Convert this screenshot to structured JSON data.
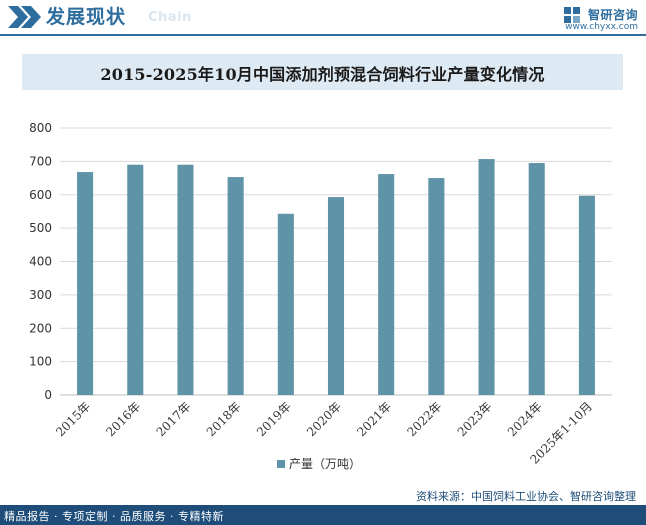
{
  "header": {
    "title": "发展现状",
    "subtitle": "Chain",
    "brand_name": "智研咨询",
    "brand_url": "www.chyxx.com"
  },
  "colors": {
    "accent": "#2e6e9e",
    "bar": "#5f93a8",
    "footer": "#1e4d79",
    "title_bg": "#dde9f3"
  },
  "chart_data": {
    "type": "bar",
    "title": "2015-2025年10月中国添加剂预混合饲料行业产量变化情况",
    "categories": [
      "2015年",
      "2016年",
      "2017年",
      "2018年",
      "2019年",
      "2020年",
      "2021年",
      "2022年",
      "2023年",
      "2024年",
      "2025年1-10月"
    ],
    "series": [
      {
        "name": "产量（万吨）",
        "values": [
          668,
          690,
          690,
          653,
          543,
          593,
          662,
          650,
          707,
          695,
          597
        ]
      }
    ],
    "ylim": [
      0,
      800
    ],
    "yticks": [
      0,
      100,
      200,
      300,
      400,
      500,
      600,
      700,
      800
    ],
    "xlabel": "",
    "ylabel": "",
    "grid": true,
    "legend_position": "bottom"
  },
  "footer": {
    "left_text": "精品报告 · 专项定制 · 品质服务 · 专精特新",
    "source": "资料来源：中国饲料工业协会、智研咨询整理"
  }
}
